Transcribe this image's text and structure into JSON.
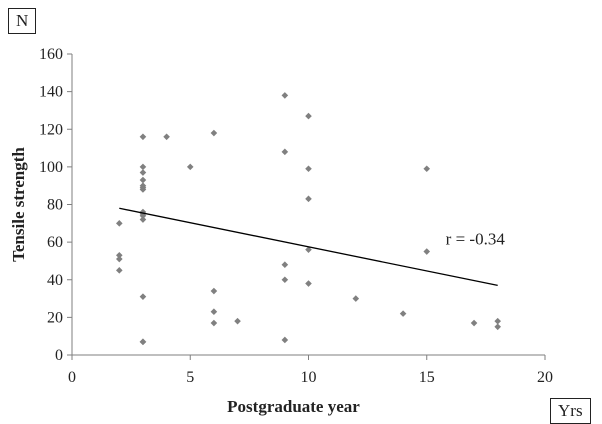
{
  "chart_data": {
    "type": "scatter",
    "title": "",
    "xlabel": "Postgraduate year",
    "ylabel": "Tensile strength",
    "x_unit": "Yrs",
    "y_unit": "N",
    "xlim": [
      0,
      20
    ],
    "ylim": [
      0,
      160
    ],
    "x_ticks": [
      0,
      5,
      10,
      15,
      20
    ],
    "y_ticks": [
      0,
      20,
      40,
      60,
      80,
      100,
      120,
      140,
      160
    ],
    "grid": false,
    "points": {
      "x": [
        2,
        2,
        2,
        2,
        3,
        3,
        3,
        3,
        3,
        3,
        3,
        3,
        3,
        3,
        3,
        3,
        3,
        3,
        4,
        5,
        6,
        6,
        6,
        6,
        7,
        9,
        9,
        9,
        9,
        9,
        10,
        10,
        10,
        10,
        10,
        12,
        14,
        15,
        15,
        17,
        18,
        18
      ],
      "y": [
        70,
        53,
        51,
        45,
        116,
        100,
        97,
        93,
        90,
        89,
        88,
        76,
        75,
        74,
        72,
        31,
        7,
        7,
        116,
        100,
        118,
        34,
        23,
        17,
        18,
        138,
        108,
        48,
        40,
        8,
        127,
        99,
        83,
        56,
        38,
        30,
        22,
        99,
        55,
        17,
        18,
        15
      ]
    },
    "trendline": {
      "x": [
        2,
        18
      ],
      "y": [
        78,
        37
      ]
    },
    "annotation": "r = -0.34",
    "annotation_pos": {
      "x": 15.8,
      "y": 62
    },
    "marker_color": "#808080",
    "line_color": "#000000"
  }
}
